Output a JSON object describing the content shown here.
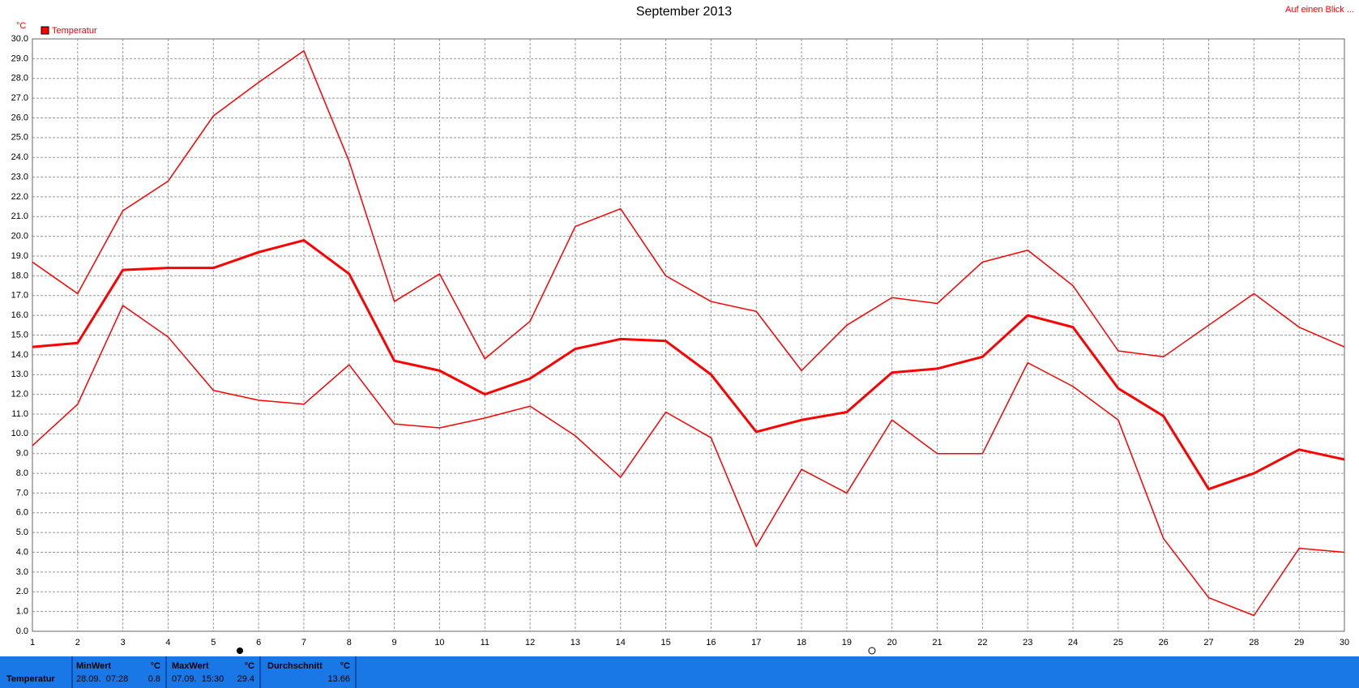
{
  "chart_data": {
    "type": "line",
    "title": "September 2013",
    "y_unit": "°C",
    "legend_label": "Temperatur",
    "legend_color": "#ff0000",
    "corner_link": "Auf einen Blick ...",
    "x": [
      1,
      2,
      3,
      4,
      5,
      6,
      7,
      8,
      9,
      10,
      11,
      12,
      13,
      14,
      15,
      16,
      17,
      18,
      19,
      20,
      21,
      22,
      23,
      24,
      25,
      26,
      27,
      28,
      29,
      30
    ],
    "xlim": [
      1,
      30
    ],
    "xticks": [
      1,
      2,
      3,
      4,
      5,
      6,
      7,
      8,
      9,
      10,
      11,
      12,
      13,
      14,
      15,
      16,
      17,
      18,
      19,
      20,
      21,
      22,
      23,
      24,
      25,
      26,
      27,
      28,
      29,
      30
    ],
    "ylim": [
      0,
      30
    ],
    "yticks": [
      {
        "value": 0,
        "label": "0.0"
      },
      {
        "value": 1,
        "label": "1.0"
      },
      {
        "value": 2,
        "label": "2.0"
      },
      {
        "value": 3,
        "label": "3.0"
      },
      {
        "value": 4,
        "label": "4.0"
      },
      {
        "value": 5,
        "label": "5.0"
      },
      {
        "value": 6,
        "label": "6.0"
      },
      {
        "value": 7,
        "label": "7.0"
      },
      {
        "value": 8,
        "label": "8.0"
      },
      {
        "value": 9,
        "label": "9.0"
      },
      {
        "value": 10,
        "label": "10.0"
      },
      {
        "value": 11,
        "label": "11.0"
      },
      {
        "value": 12,
        "label": "12.0"
      },
      {
        "value": 13,
        "label": "13.0"
      },
      {
        "value": 14,
        "label": "14.0"
      },
      {
        "value": 15,
        "label": "15.0"
      },
      {
        "value": 16,
        "label": "16.0"
      },
      {
        "value": 17,
        "label": "17.0"
      },
      {
        "value": 18,
        "label": "18.0"
      },
      {
        "value": 19,
        "label": "19.0"
      },
      {
        "value": 20,
        "label": "20.0"
      },
      {
        "value": 21,
        "label": "21.0"
      },
      {
        "value": 22,
        "label": "22.0"
      },
      {
        "value": 23,
        "label": "23.0"
      },
      {
        "value": 24,
        "label": "24.0"
      },
      {
        "value": 25,
        "label": "25.0"
      },
      {
        "value": 26,
        "label": "26.0"
      },
      {
        "value": 27,
        "label": "27.0"
      },
      {
        "value": 28,
        "label": "28.0"
      },
      {
        "value": 29,
        "label": "29.0"
      },
      {
        "value": 30,
        "label": "30.0"
      }
    ],
    "grid": true,
    "series": [
      {
        "color": "#ff0000",
        "line_width": 1.5,
        "values": [
          18.7,
          17.1,
          21.3,
          22.8,
          26.1,
          27.8,
          29.4,
          23.8,
          16.7,
          18.1,
          13.8,
          15.7,
          20.5,
          21.4,
          18.0,
          16.7,
          16.2,
          13.2,
          15.5,
          16.9,
          16.6,
          18.7,
          19.3,
          17.5,
          14.2,
          13.9,
          15.5,
          17.1,
          15.4,
          14.4
        ]
      },
      {
        "color": "#ff0000",
        "line_width": 3,
        "values": [
          14.4,
          14.6,
          18.3,
          18.4,
          18.4,
          19.2,
          19.8,
          18.1,
          13.7,
          13.2,
          12.0,
          12.8,
          14.3,
          14.8,
          14.7,
          13.0,
          10.1,
          10.7,
          11.1,
          13.1,
          13.3,
          13.9,
          16.0,
          15.4,
          12.3,
          10.9,
          7.2,
          8.0,
          9.2,
          8.7
        ]
      },
      {
        "color": "#ff0000",
        "line_width": 1.5,
        "values": [
          9.4,
          11.5,
          16.5,
          14.9,
          12.2,
          11.7,
          11.5,
          13.5,
          10.5,
          10.3,
          10.8,
          11.4,
          9.9,
          7.8,
          11.1,
          9.8,
          4.3,
          8.2,
          7.0,
          10.7,
          9.0,
          9.0,
          13.6,
          12.4,
          10.7,
          4.7,
          1.7,
          0.8,
          4.2,
          4.0
        ]
      }
    ]
  },
  "summary": {
    "label": "Temperatur",
    "min": {
      "title": "MinWert",
      "unit": "°C",
      "time": "28.09.  07:28",
      "value": "0.8"
    },
    "max": {
      "title": "MaxWert",
      "unit": "°C",
      "time": "07.09.  15:30",
      "value": "29.4"
    },
    "avg": {
      "title": "Durchschnitt",
      "unit": "°C",
      "value": "13.66"
    }
  }
}
